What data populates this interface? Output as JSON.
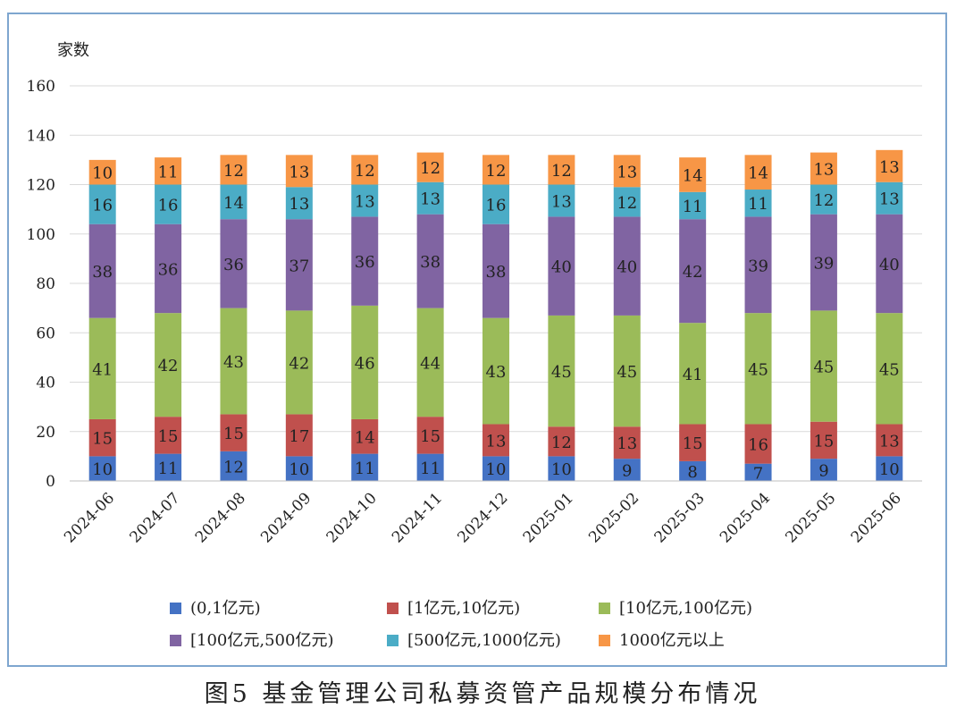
{
  "chart_data": {
    "type": "bar",
    "stacked": true,
    "ylabel": "家数",
    "ylim": [
      0,
      160
    ],
    "yticks": [
      0,
      20,
      40,
      60,
      80,
      100,
      120,
      140,
      160
    ],
    "grid": true,
    "legend_position": "bottom",
    "categories": [
      "2024-06",
      "2024-07",
      "2024-08",
      "2024-09",
      "2024-10",
      "2024-11",
      "2024-12",
      "2025-01",
      "2025-02",
      "2025-03",
      "2025-04",
      "2025-05",
      "2025-06"
    ],
    "series": [
      {
        "name": "(0,1亿元)",
        "color": "#4472c4",
        "values": [
          10,
          11,
          12,
          10,
          11,
          11,
          10,
          10,
          9,
          8,
          7,
          9,
          10
        ]
      },
      {
        "name": "[1亿元,10亿元)",
        "color": "#c0504d",
        "values": [
          15,
          15,
          15,
          17,
          14,
          15,
          13,
          12,
          13,
          15,
          16,
          15,
          13
        ]
      },
      {
        "name": "[10亿元,100亿元)",
        "color": "#9bbb59",
        "values": [
          41,
          42,
          43,
          42,
          46,
          44,
          43,
          45,
          45,
          41,
          45,
          45,
          45
        ]
      },
      {
        "name": "[100亿元,500亿元)",
        "color": "#8064a2",
        "values": [
          38,
          36,
          36,
          37,
          36,
          38,
          38,
          40,
          40,
          42,
          39,
          39,
          40
        ]
      },
      {
        "name": "[500亿元,1000亿元)",
        "color": "#4bacc6",
        "values": [
          16,
          16,
          14,
          13,
          13,
          13,
          16,
          13,
          12,
          11,
          11,
          12,
          13
        ]
      },
      {
        "name": "1000亿元以上",
        "color": "#f79646",
        "values": [
          10,
          11,
          12,
          13,
          12,
          12,
          12,
          12,
          13,
          14,
          14,
          13,
          13
        ]
      }
    ]
  },
  "caption": "图5  基金管理公司私募资管产品规模分布情况"
}
